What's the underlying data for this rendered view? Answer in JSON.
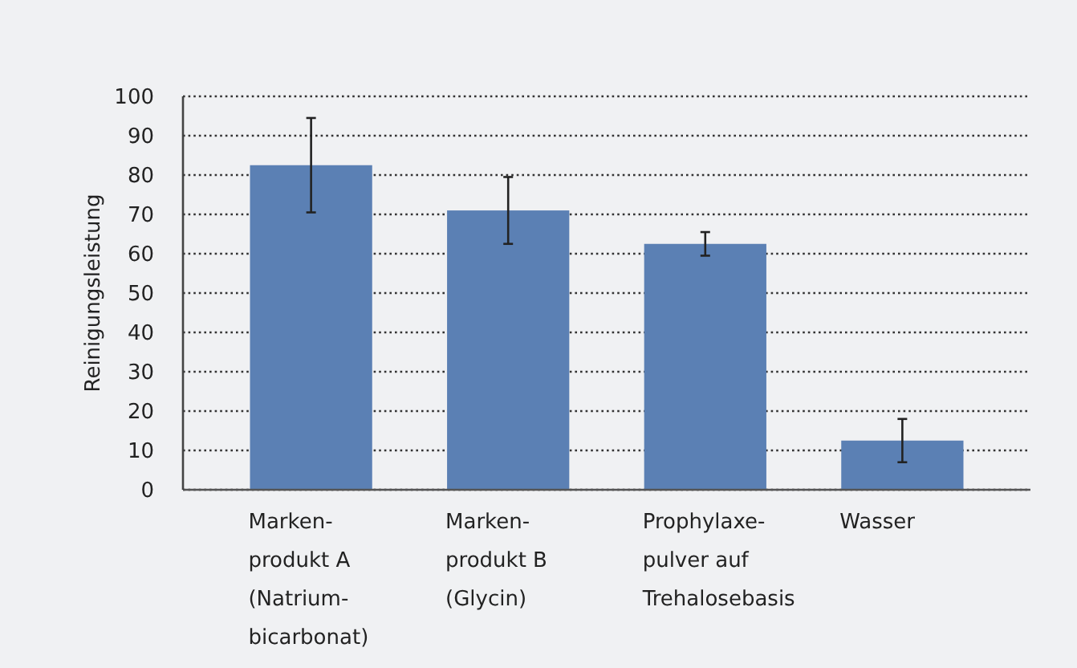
{
  "chart_data": {
    "type": "bar",
    "ylabel": "Reinigungsleistung",
    "categories": [
      "Marken-\nprodukt A\n(Natrium-\nbicarbonat)",
      "Marken-\nprodukt B\n(Glycin)",
      "Prophylaxe-\npulver auf\nTrehalosebasis",
      "Wasser"
    ],
    "values": [
      82.5,
      71,
      62.5,
      12.5
    ],
    "errors": [
      12,
      8.5,
      3,
      5.5
    ],
    "color": "#5b80b4",
    "ylim": [
      0,
      100
    ],
    "yticks": [
      0,
      10,
      20,
      30,
      40,
      50,
      60,
      70,
      80,
      90,
      100
    ],
    "grid": "y"
  }
}
